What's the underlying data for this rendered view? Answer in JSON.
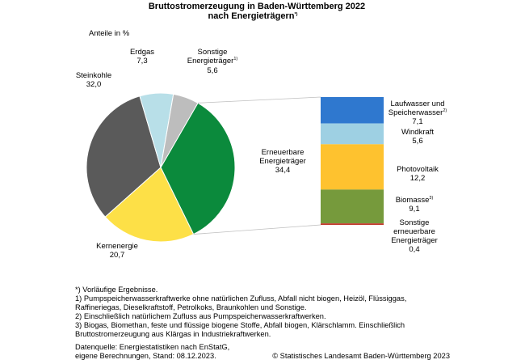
{
  "chart_data": {
    "type": "pie",
    "title_line1": "Bruttostromerzeugung in Baden-Württemberg 2022",
    "title_line2": "nach Energieträgern",
    "title_sup": "*)",
    "unit_label": "Anteile in %",
    "pie": [
      {
        "name": "Erneuerbare Energieträger",
        "value": 34.4,
        "label": "34,4",
        "color": "#0b8a3c"
      },
      {
        "name": "Kernenergie",
        "value": 20.7,
        "label": "20,7",
        "color": "#fde047"
      },
      {
        "name": "Steinkohle",
        "value": 32.0,
        "label": "32,0",
        "color": "#5a5a5a"
      },
      {
        "name": "Erdgas",
        "value": 7.3,
        "label": "7,3",
        "color": "#b8dfe8"
      },
      {
        "name": "Sonstige Energieträger",
        "value": 5.6,
        "label": "5,6",
        "color": "#bdbdbd"
      }
    ],
    "labels": {
      "erneuerbare_1": "Erneuerbare",
      "erneuerbare_2": "Energieträger",
      "kern": "Kernenergie",
      "stein": "Steinkohle",
      "erdgas": "Erdgas",
      "sonstige_1": "Sonstige",
      "sonstige_2": "Energieträger",
      "sonstige_sup": "1)"
    },
    "breakdown": [
      {
        "name": "Laufwasser und Speicherwasser",
        "line1": "Laufwasser und",
        "line2": "Speicherwasser",
        "sup": "2)",
        "value": 7.1,
        "label": "7,1",
        "color": "#2f78cf"
      },
      {
        "name": "Windkraft",
        "line1": "Windkraft",
        "line2": "",
        "sup": "",
        "value": 5.6,
        "label": "5,6",
        "color": "#9ed0e3"
      },
      {
        "name": "Photovoltaik",
        "line1": "Photovoltaik",
        "line2": "",
        "sup": "",
        "value": 12.2,
        "label": "12,2",
        "color": "#fec22f"
      },
      {
        "name": "Biomasse",
        "line1": "Biomasse",
        "line2": "",
        "sup": "3)",
        "value": 9.1,
        "label": "9,1",
        "color": "#769a3c"
      },
      {
        "name": "Sonstige erneuerbare Energieträger",
        "line1": "Sonstige",
        "line2": "erneuerbare",
        "line3": "Energieträger",
        "sup": "",
        "value": 0.4,
        "label": "0,4",
        "color": "#c0392b"
      }
    ]
  },
  "footnotes": {
    "text": "*) Vorläufige Ergebnisse.\n1) Pumpspeicherwasserkraftwerke ohne natürlichen Zufluss, Abfall nicht biogen, Heizöl, Flüssiggas,\nRaffineriegas, Dieselkraftstoff, Petrolkoks, Braunkohlen und Sonstige.\n2) Einschließlich natürlichem Zufluss aus Pumpspeicherwasserkraftwerken.\n3) Biogas, Biomethan, feste und flüssige biogene Stoffe, Abfall biogen, Klärschlamm. Einschließlich\nBruttostromerzeugung aus Klärgas in Industriekraftwerken.",
    "source": "Datenquelle: Energiestatistiken nach EnStatG,\neigene Berechnungen, Stand: 08.12.2023.",
    "copyright": "© Statistisches Landesamt Baden-Württemberg 2023"
  }
}
